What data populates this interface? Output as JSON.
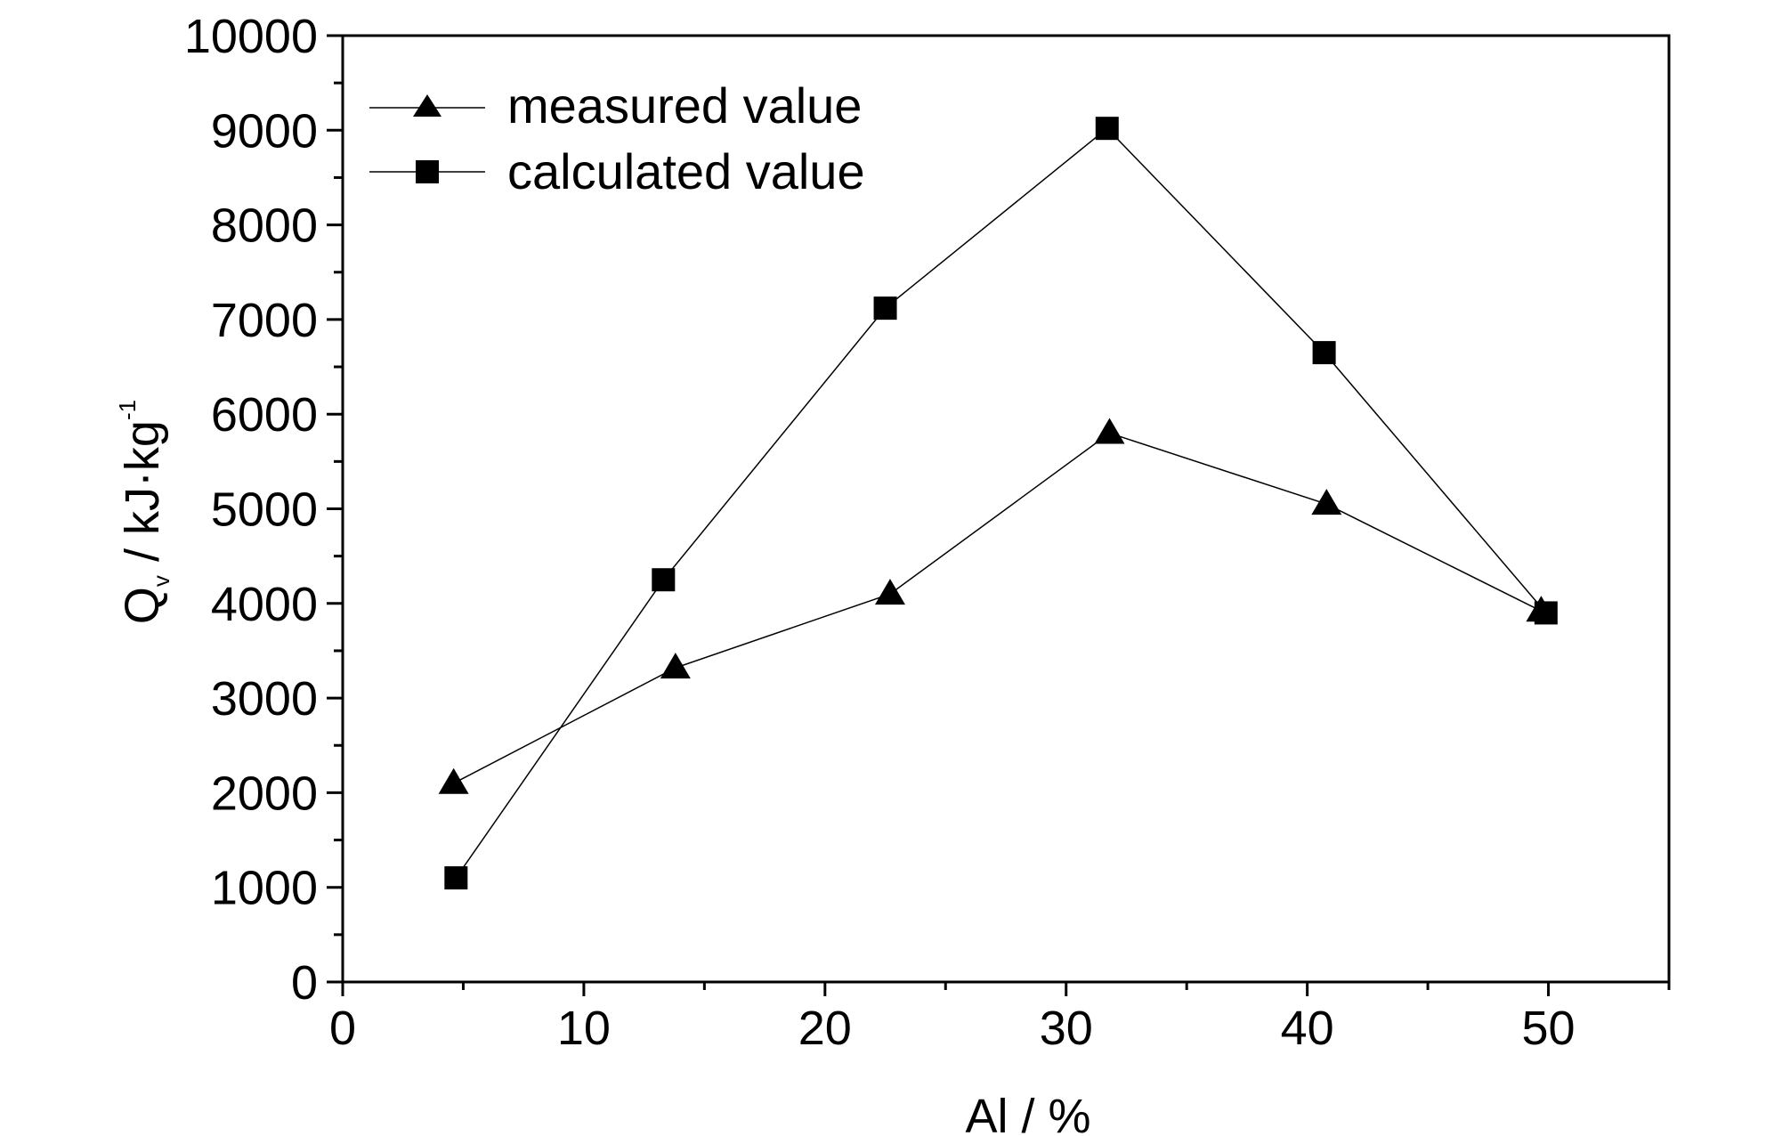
{
  "chart_data": {
    "type": "line",
    "xlabel": "Al / %",
    "ylabel": {
      "main": "Q",
      "sub": "v",
      "unit": " / kJ·kg",
      "sup": "-1"
    },
    "xlim": [
      0,
      55
    ],
    "ylim": [
      0,
      10000
    ],
    "xticks": [
      0,
      10,
      20,
      30,
      40,
      50
    ],
    "yticks": [
      0,
      1000,
      2000,
      3000,
      4000,
      5000,
      6000,
      7000,
      8000,
      9000,
      10000
    ],
    "grid": false,
    "legend_position": "top-left",
    "series": [
      {
        "name": "measured value",
        "marker": "triangle",
        "x": [
          4.6,
          13.8,
          22.7,
          31.8,
          40.8,
          49.7
        ],
        "y": [
          2100,
          3320,
          4100,
          5800,
          5050,
          3920
        ]
      },
      {
        "name": "calculated value",
        "marker": "square",
        "x": [
          4.7,
          13.3,
          22.5,
          31.7,
          40.7,
          49.9
        ],
        "y": [
          1100,
          4250,
          7120,
          9020,
          6650,
          3900
        ]
      }
    ]
  }
}
